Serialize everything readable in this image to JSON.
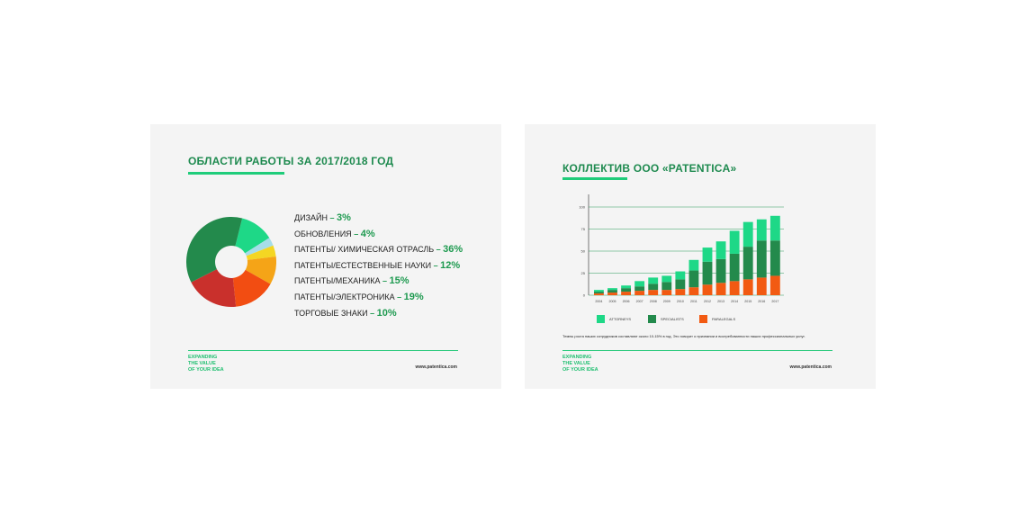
{
  "slide_left": {
    "title": "ОБЛАСТИ РАБОТЫ ЗА 2017/2018 ГОД",
    "tagline": [
      "EXPANDING",
      "THE VALUE",
      "OF YOUR IDEA"
    ],
    "site": "www.patentica.com"
  },
  "slide_right": {
    "title": "КОЛЛЕКТИВ ООО «PATENTICA»",
    "note": "Темпы роста наших сотрудников составляют около 10-15% в год. Это говорит о признании и востребованности наших профессиональных услуг.",
    "tagline": [
      "EXPANDING",
      "THE VALUE",
      "OF YOUR IDEA"
    ],
    "site": "www.patentica.com"
  },
  "chart_data": [
    {
      "type": "pie",
      "categories": [
        "ДИЗАЙН",
        "ОБНОВЛЕНИЯ",
        "ПАТЕНТЫ/ ХИМИЧЕСКАЯ ОТРАСЛЬ",
        "ПАТЕНТЫ/ЕСТЕСТВЕННЫЕ НАУКИ",
        "ПАТЕНТЫ/МЕХАНИКА",
        "ПАТЕНТЫ/ЭЛЕКТРОНИКА",
        "ТОРГОВЫЕ ЗНАКИ"
      ],
      "labels": [
        "3%",
        "4%",
        "36%",
        "12%",
        "15%",
        "19%",
        "10%"
      ],
      "values": [
        3,
        4,
        36,
        12,
        15,
        19,
        10
      ],
      "chart_slices": [
        {
          "label": "ПАТЕНТЫ/ЕСТЕСТВЕННЫЕ НАУКИ",
          "value": 12,
          "color": "#1ed887"
        },
        {
          "label": "ДИЗАЙН",
          "value": 3,
          "color": "#a6dde9"
        },
        {
          "label": "ОБНОВЛЕНИЯ",
          "value": 4,
          "color": "#f4d623"
        },
        {
          "label": "ТОРГОВЫЕ ЗНАКИ",
          "value": 10,
          "color": "#f5a417"
        },
        {
          "label": "ПАТЕНТЫ/МЕХАНИКА",
          "value": 15,
          "color": "#f24d12"
        },
        {
          "label": "ПАТЕНТЫ/ЭЛЕКТРОНИКА",
          "value": 19,
          "color": "#c9302c"
        },
        {
          "label": "ПАТЕНТЫ/ ХИМИЧЕСКАЯ ОТРАСЛЬ",
          "value": 36,
          "color": "#238a4c"
        }
      ]
    },
    {
      "type": "bar",
      "stacked": true,
      "categories": [
        "2004",
        "2005",
        "2006",
        "2007",
        "2008",
        "2009",
        "2010",
        "2011",
        "2012",
        "2013",
        "2014",
        "2015",
        "2016",
        "2017"
      ],
      "ylim": [
        0,
        100
      ],
      "yticks": [
        "0",
        "25",
        "50",
        "75",
        "100"
      ],
      "grid": true,
      "legend_position": "bottom",
      "series": [
        {
          "name": "PARALEGALS",
          "color": "#f25a12",
          "values": [
            2,
            3,
            4,
            5,
            6,
            6,
            7,
            9,
            12,
            14,
            16,
            18,
            20,
            22
          ]
        },
        {
          "name": "SPECIALISTS",
          "color": "#238a4c",
          "values": [
            2,
            3,
            4,
            5,
            7,
            9,
            11,
            19,
            26,
            27,
            31,
            37,
            42,
            40
          ]
        },
        {
          "name": "ATTORNEYS",
          "color": "#1ed887",
          "values": [
            2,
            2,
            3,
            6,
            7,
            7,
            9,
            12,
            16,
            20,
            26,
            28,
            24,
            28
          ]
        }
      ]
    }
  ]
}
